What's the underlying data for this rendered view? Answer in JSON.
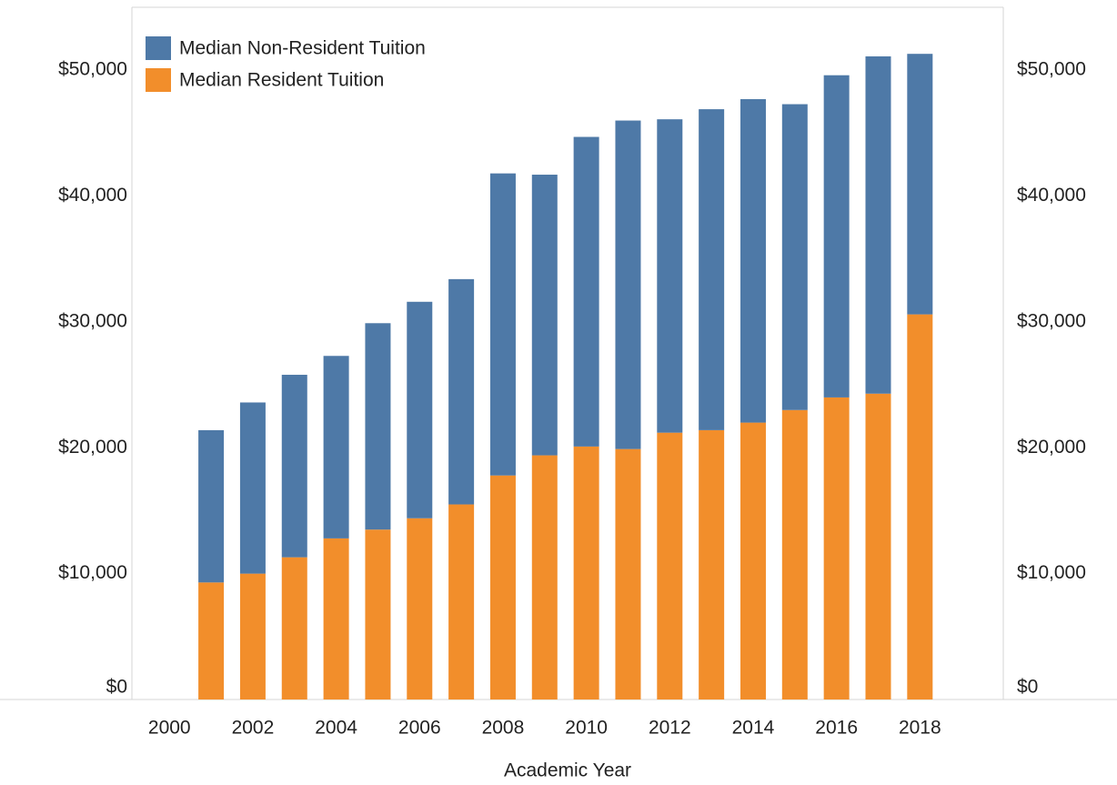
{
  "chart_data": {
    "type": "stacked-bar",
    "x_label": "Academic Year",
    "x": [
      2001,
      2002,
      2003,
      2004,
      2005,
      2006,
      2007,
      2008,
      2009,
      2010,
      2011,
      2012,
      2013,
      2014,
      2015,
      2016,
      2017,
      2018
    ],
    "series": [
      {
        "name": "Median Resident Tuition",
        "color": "#f28e2b",
        "values": [
          9300,
          10000,
          11300,
          12800,
          13500,
          14400,
          15500,
          17800,
          19400,
          20100,
          19900,
          21200,
          21400,
          22000,
          23000,
          24000,
          24300,
          30600
        ]
      },
      {
        "name": "Median Non-Resident Tuition",
        "color": "#4e79a7",
        "values": [
          12100,
          13600,
          14500,
          14500,
          16400,
          17200,
          17900,
          24000,
          22300,
          24600,
          26100,
          24900,
          25500,
          25700,
          24300,
          25600,
          26800,
          20700
        ]
      }
    ],
    "xlim": [
      1999.1,
      2020
    ],
    "xticks": [
      2000,
      2002,
      2004,
      2006,
      2008,
      2010,
      2012,
      2014,
      2016,
      2018
    ],
    "ylim": [
      0,
      55000
    ],
    "yticks": [
      {
        "value": 0,
        "label": "$0"
      },
      {
        "value": 10000,
        "label": "$10,000"
      },
      {
        "value": 20000,
        "label": "$20,000"
      },
      {
        "value": 30000,
        "label": "$30,000"
      },
      {
        "value": 40000,
        "label": "$40,000"
      },
      {
        "value": 50000,
        "label": "$50,000"
      }
    ],
    "y2lim": [
      0,
      55000
    ],
    "y2ticks": [
      {
        "value": 0,
        "label": "$0"
      },
      {
        "value": 10000,
        "label": "$10,000"
      },
      {
        "value": 20000,
        "label": "$20,000"
      },
      {
        "value": 30000,
        "label": "$30,000"
      },
      {
        "value": 40000,
        "label": "$40,000"
      },
      {
        "value": 50000,
        "label": "$50,000"
      }
    ],
    "legend": "upper left",
    "grid": false
  }
}
